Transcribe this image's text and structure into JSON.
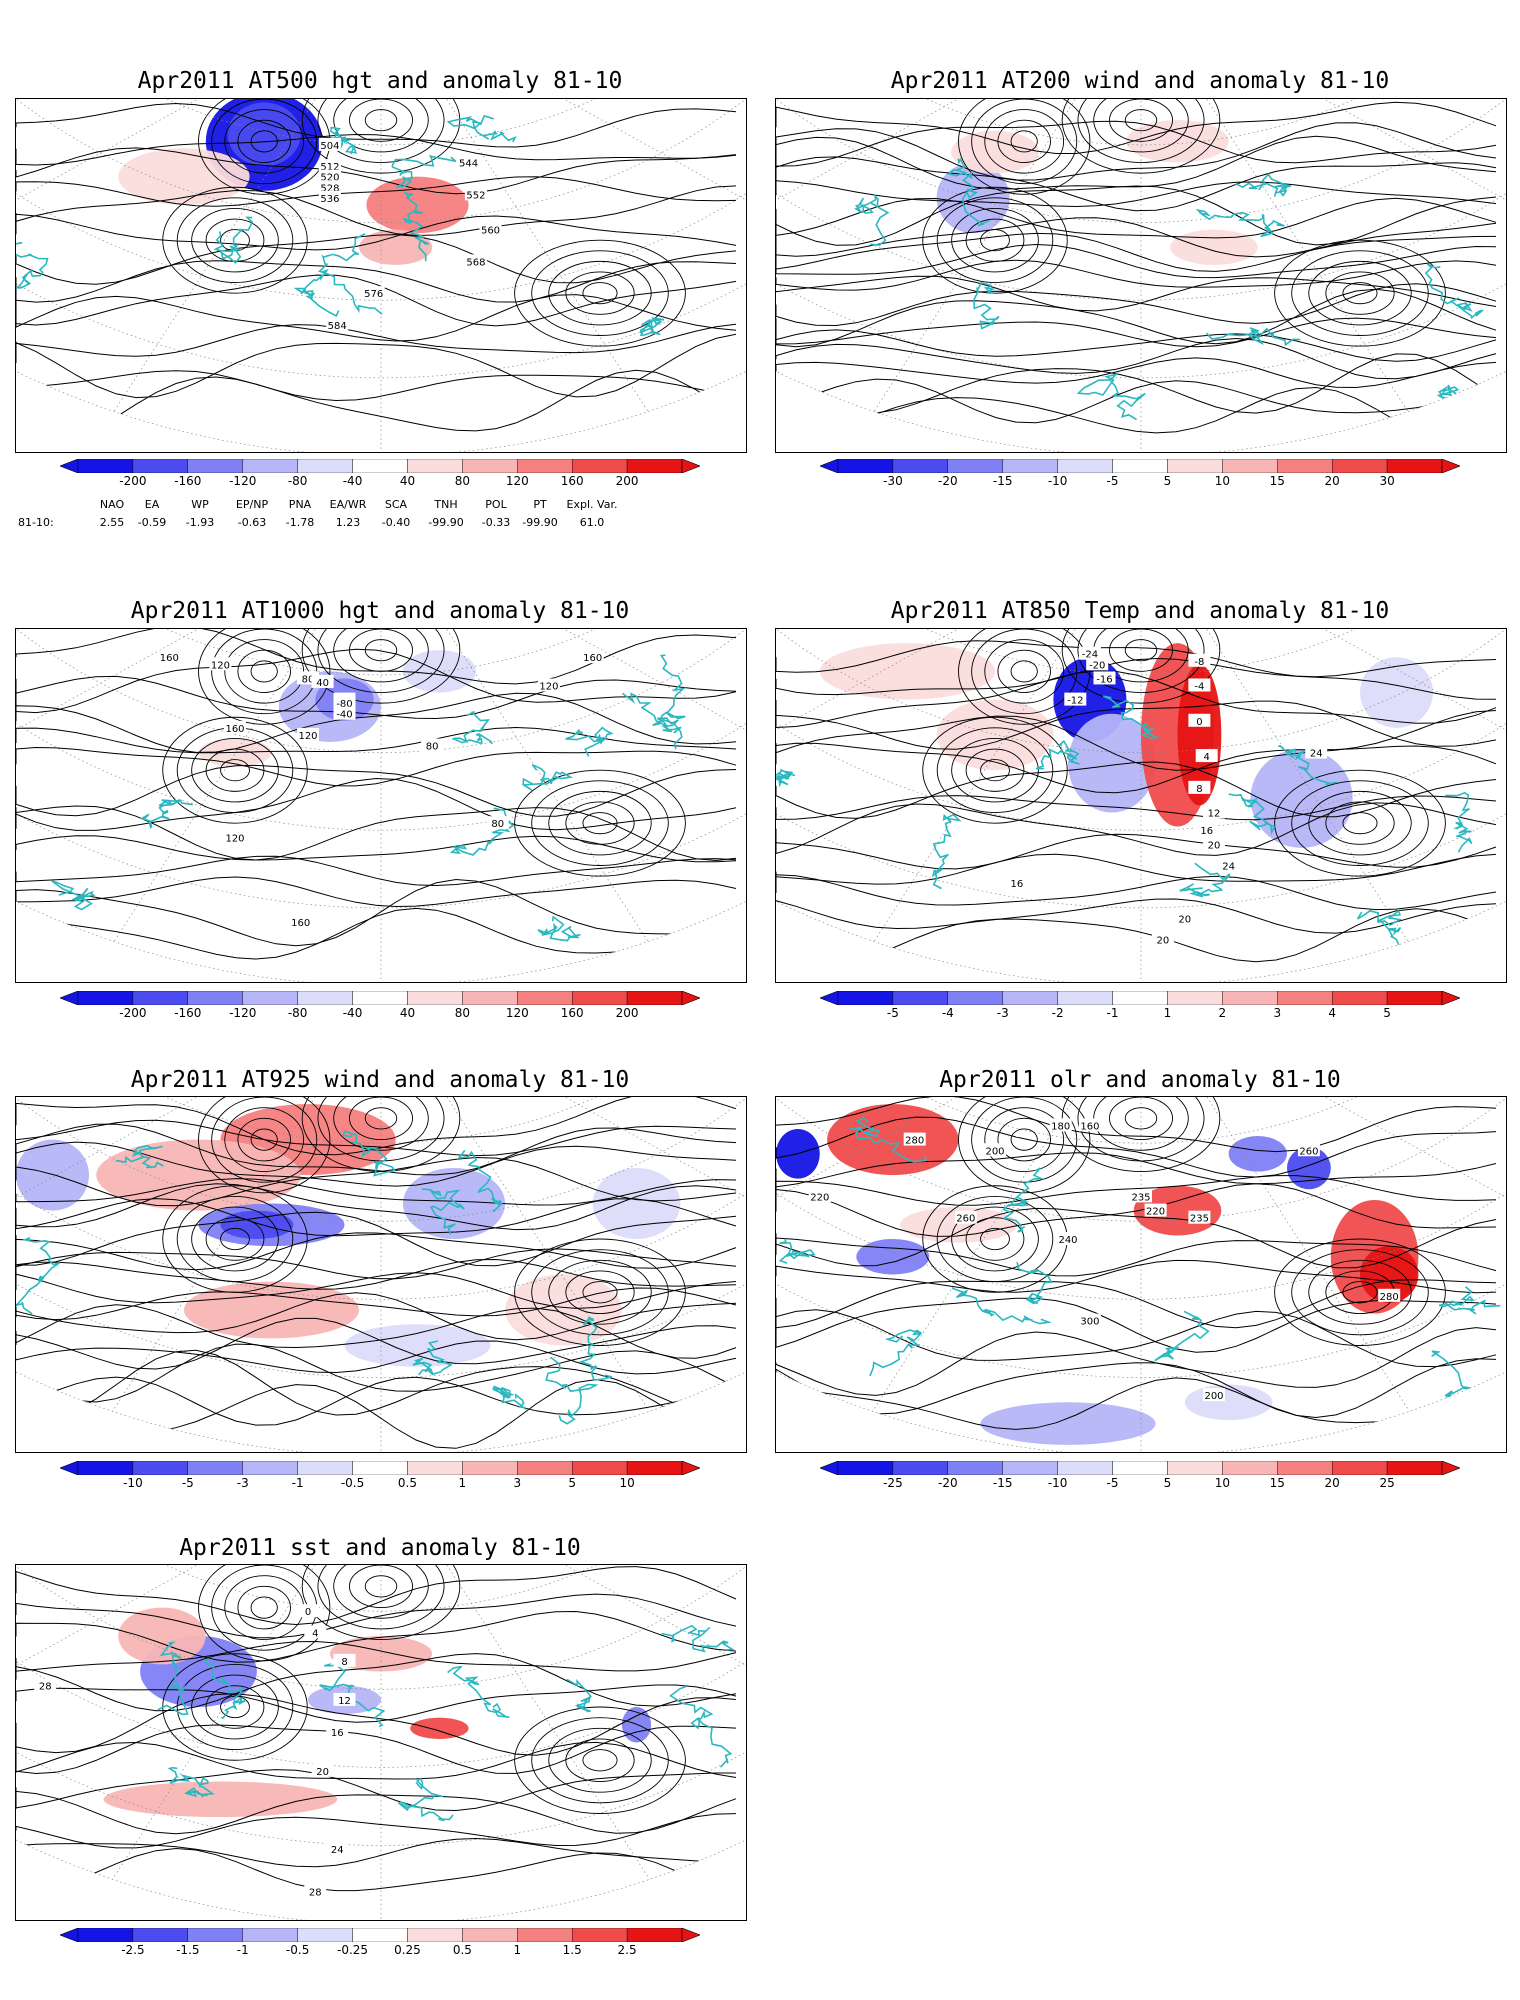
{
  "colors": {
    "coast": "#2ab8c0",
    "contour": "#000000",
    "neg": [
      "#1414e6",
      "#4b4bf0",
      "#8080f5",
      "#b5b5f8",
      "#dcdcfb"
    ],
    "pos": [
      "#fbdcdc",
      "#f8b5b5",
      "#f58080",
      "#f04b4b",
      "#e61414"
    ]
  },
  "panels": [
    {
      "title": "Apr2011 AT500 hgt and anomaly 81-10",
      "colorbar": [
        "-200",
        "-160",
        "-120",
        "-80",
        "-40",
        "40",
        "80",
        "120",
        "160",
        "200"
      ],
      "contour_labels": [
        "504",
        "512",
        "520",
        "528",
        "536",
        "544",
        "552",
        "560",
        "568",
        "576",
        "584"
      ]
    },
    {
      "title": "Apr2011 AT200 wind and anomaly 81-10",
      "colorbar": [
        "-30",
        "-20",
        "-15",
        "-10",
        "-5",
        "5",
        "10",
        "15",
        "20",
        "30"
      ],
      "contour_labels": []
    },
    {
      "title": "Apr2011 AT1000 hgt and anomaly 81-10",
      "colorbar": [
        "-200",
        "-160",
        "-120",
        "-80",
        "-40",
        "40",
        "80",
        "120",
        "160",
        "200"
      ],
      "contour_labels": [
        "160",
        "120",
        "80",
        "40",
        "0",
        "-80",
        "-40",
        "160",
        "120",
        "160",
        "120",
        "80",
        "80",
        "120",
        "160"
      ]
    },
    {
      "title": "Apr2011 AT850 Temp and anomaly 81-10",
      "colorbar": [
        "-5",
        "-4",
        "-3",
        "-2",
        "-1",
        "1",
        "2",
        "3",
        "4",
        "5"
      ],
      "contour_labels": [
        "-24",
        "-20",
        "-16",
        "-12",
        "-8",
        "-4",
        "0",
        "4",
        "8",
        "12",
        "16",
        "20",
        "24",
        "20",
        "16",
        "24",
        "20"
      ]
    },
    {
      "title": "Apr2011 AT925 wind and anomaly 81-10",
      "colorbar": [
        "-10",
        "-5",
        "-3",
        "-1",
        "-0.5",
        "0.5",
        "1",
        "3",
        "5",
        "10"
      ],
      "contour_labels": []
    },
    {
      "title": "Apr2011 olr and anomaly 81-10",
      "colorbar": [
        "-25",
        "-20",
        "-15",
        "-10",
        "-5",
        "5",
        "10",
        "15",
        "20",
        "25"
      ],
      "contour_labels": [
        "180",
        "160",
        "200",
        "220",
        "235",
        "240",
        "260",
        "280",
        "300",
        "200",
        "220",
        "235",
        "260",
        "280"
      ]
    },
    {
      "title": "Apr2011 sst and anomaly 81-10",
      "colorbar": [
        "-2.5",
        "-1.5",
        "-1",
        "-0.5",
        "-0.25",
        "0.25",
        "0.5",
        "1",
        "1.5",
        "2.5"
      ],
      "contour_labels": [
        "0",
        "4",
        "8",
        "12",
        "16",
        "20",
        "24",
        "28",
        "28"
      ]
    }
  ],
  "indices": {
    "row_label": "81-10:",
    "names": [
      "NAO",
      "EA",
      "WP",
      "EP/NP",
      "PNA",
      "EA/WR",
      "SCA",
      "TNH",
      "POL",
      "PT",
      "Expl. Var."
    ],
    "values": [
      "2.55",
      "-0.59",
      "-1.93",
      "-0.63",
      "-1.78",
      "1.23",
      "-0.40",
      "-99.90",
      "-0.33",
      "-99.90",
      "61.0"
    ]
  }
}
